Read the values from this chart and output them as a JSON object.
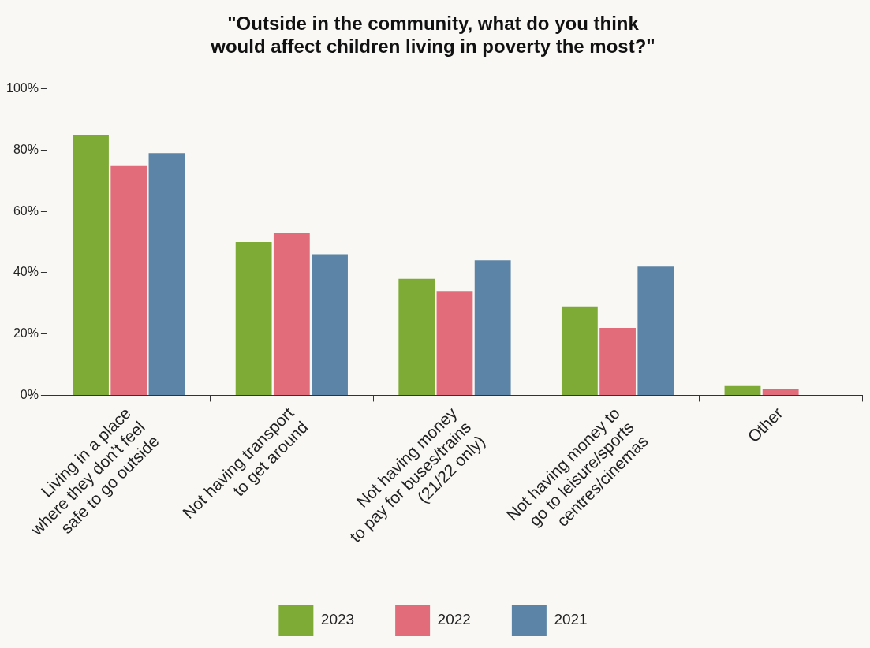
{
  "chart_data": {
    "type": "bar",
    "title": "\"Outside in the community, what do you think\nwould affect children living in poverty the most?\"",
    "categories": [
      "Living in a place\nwhere they don’t feel\nsafe to go outside",
      "Not having transport\nto get around",
      "Not having money\nto pay for buses/trains\n(21/22 only)",
      "Not having money to\ngo to leisure/sports\ncentres/cinemas",
      "Other"
    ],
    "series": [
      {
        "name": "2023",
        "color": "#7dab35",
        "values": [
          85,
          50,
          38,
          29,
          3
        ]
      },
      {
        "name": "2022",
        "color": "#e36c7b",
        "values": [
          75,
          53,
          34,
          22,
          2
        ]
      },
      {
        "name": "2021",
        "color": "#5b84a6",
        "values": [
          79,
          46,
          44,
          42,
          null
        ]
      }
    ],
    "ylim": [
      0,
      100
    ],
    "yticks": [
      {
        "value": 0,
        "label": "0%"
      },
      {
        "value": 20,
        "label": "20%"
      },
      {
        "value": 40,
        "label": "40%"
      },
      {
        "value": 60,
        "label": "60%"
      },
      {
        "value": 80,
        "label": "80%"
      },
      {
        "value": 100,
        "label": "100%"
      }
    ],
    "grid": false,
    "legend": "bottom"
  }
}
